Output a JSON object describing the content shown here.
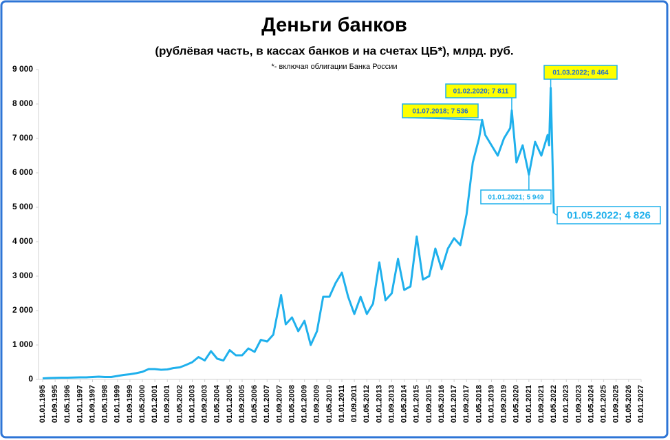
{
  "chart_data": {
    "type": "line",
    "title": "Деньги банков",
    "subtitle": "(рублёвая часть, в кассах банков и на счетах ЦБ*), млрд. руб.",
    "note": "*- включая облигации Банка России",
    "color": "#1fb0ec",
    "x": [
      "01.01.1995",
      "01.05.1995",
      "01.09.1995",
      "01.01.1996",
      "01.05.1996",
      "01.09.1996",
      "01.01.1997",
      "01.05.1997",
      "01.09.1997",
      "01.01.1998",
      "01.05.1998",
      "01.09.1998",
      "01.01.1999",
      "01.05.1999",
      "01.09.1999",
      "01.01.2000",
      "01.05.2000",
      "01.09.2000",
      "01.01.2001",
      "01.05.2001",
      "01.09.2001",
      "01.01.2002",
      "01.05.2002",
      "01.09.2002",
      "01.01.2003",
      "01.05.2003",
      "01.09.2003",
      "01.01.2004",
      "01.05.2004",
      "01.09.2004",
      "01.01.2005",
      "01.05.2005",
      "01.09.2005",
      "01.01.2006",
      "01.05.2006",
      "01.09.2006",
      "01.01.2007",
      "01.05.2007",
      "01.10.2007",
      "01.01.2008",
      "01.05.2008",
      "01.09.2008",
      "01.01.2009",
      "01.05.2009",
      "01.09.2009",
      "01.01.2010",
      "01.05.2010",
      "01.09.2010",
      "01.01.2011",
      "01.05.2011",
      "01.09.2011",
      "01.01.2012",
      "01.05.2012",
      "01.09.2012",
      "01.01.2013",
      "01.05.2013",
      "01.09.2013",
      "01.01.2014",
      "01.05.2014",
      "01.09.2014",
      "01.01.2015",
      "01.05.2015",
      "01.09.2015",
      "01.01.2016",
      "01.05.2016",
      "01.09.2016",
      "01.01.2017",
      "01.05.2017",
      "01.09.2017",
      "01.01.2018",
      "01.05.2018",
      "01.07.2018",
      "01.09.2018",
      "01.01.2019",
      "01.05.2019",
      "01.09.2019",
      "01.01.2020",
      "01.02.2020",
      "01.05.2020",
      "01.09.2020",
      "01.01.2021",
      "01.05.2021",
      "01.09.2021",
      "01.01.2022",
      "01.02.2022",
      "01.03.2022",
      "01.05.2022"
    ],
    "values": [
      30,
      40,
      45,
      50,
      50,
      55,
      60,
      60,
      70,
      80,
      70,
      70,
      100,
      130,
      150,
      180,
      220,
      300,
      300,
      280,
      290,
      330,
      350,
      420,
      500,
      650,
      550,
      820,
      600,
      550,
      850,
      700,
      700,
      900,
      800,
      1150,
      1100,
      1300,
      2450,
      1600,
      1800,
      1400,
      1700,
      1000,
      1400,
      2400,
      2400,
      2800,
      3100,
      2400,
      1900,
      2400,
      1900,
      2200,
      3400,
      2300,
      2500,
      3500,
      2600,
      2700,
      4150,
      2900,
      3000,
      3800,
      3200,
      3800,
      4100,
      3900,
      4800,
      6300,
      7000,
      7536,
      7100,
      6800,
      6500,
      7000,
      7300,
      7811,
      6300,
      6800,
      5949,
      6900,
      6500,
      7100,
      6800,
      8464,
      4826
    ],
    "xlim": [
      "01.01.1995",
      "01.01.2027"
    ],
    "xticks": [
      "01.01.1995",
      "01.09.1995",
      "01.05.1996",
      "01.01.1997",
      "01.09.1997",
      "01.05.1998",
      "01.01.1999",
      "01.09.1999",
      "01.05.2000",
      "01.01.2001",
      "01.09.2001",
      "01.05.2002",
      "01.01.2003",
      "01.09.2003",
      "01.05.2004",
      "01.01.2005",
      "01.09.2005",
      "01.05.2006",
      "01.01.2007",
      "01.09.2007",
      "01.05.2008",
      "01.01.2009",
      "01.09.2009",
      "01.05.2010",
      "01.01.2011",
      "01.09.2011",
      "01.05.2012",
      "01.01.2013",
      "01.09.2013",
      "01.05.2014",
      "01.01.2015",
      "01.09.2015",
      "01.05.2016",
      "01.01.2017",
      "01.09.2017",
      "01.05.2018",
      "01.01.2019",
      "01.09.2019",
      "01.05.2020",
      "01.01.2021",
      "01.09.2021",
      "01.05.2022",
      "01.01.2023",
      "01.09.2023",
      "01.05.2024",
      "01.01.2025",
      "01.09.2025",
      "01.05.2026",
      "01.01.2027"
    ],
    "ylim": [
      0,
      9000
    ],
    "yticks": [
      0,
      {
        "value": 1000,
        "label": "1 000"
      },
      {
        "value": 2000,
        "label": "2 000"
      },
      {
        "value": 3000,
        "label": "3 000"
      },
      {
        "value": 4000,
        "label": "4 000"
      },
      {
        "value": 5000,
        "label": "5 000"
      },
      {
        "value": 6000,
        "label": "6 000"
      },
      {
        "value": 7000,
        "label": "7 000"
      },
      {
        "value": 8000,
        "label": "8 000"
      },
      {
        "value": 9000,
        "label": "9 000"
      }
    ],
    "annotations": [
      {
        "label": "01.07.2018; 7 536",
        "x": "01.07.2018",
        "value": 7536,
        "fill": "#ffff00"
      },
      {
        "label": "01.02.2020; 7 811",
        "x": "01.02.2020",
        "value": 7811,
        "fill": "#ffff00"
      },
      {
        "label": "01.03.2022; 8 464",
        "x": "01.03.2022",
        "value": 8464,
        "fill": "#ffff00"
      },
      {
        "label": "01.01.2021; 5 949",
        "x": "01.01.2021",
        "value": 5949,
        "fill": "#ffffff"
      },
      {
        "label": "01.05.2022;  4 826",
        "x": "01.05.2022",
        "value": 4826,
        "fill": "#ffffff"
      }
    ]
  }
}
